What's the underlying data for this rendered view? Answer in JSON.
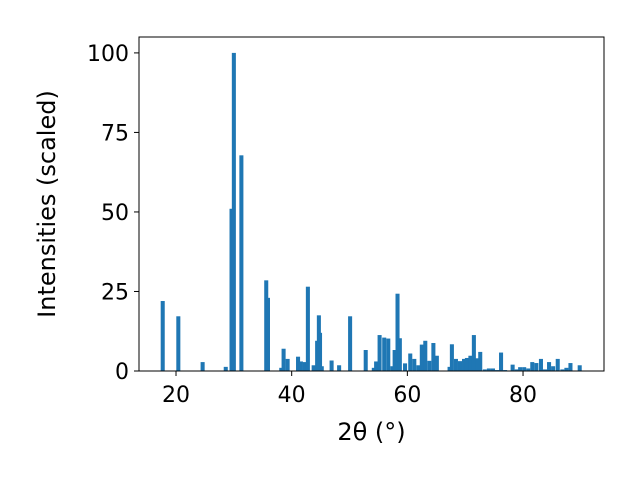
{
  "chart_data": {
    "type": "bar",
    "xlabel": "2θ (°)",
    "ylabel": "Intensities (scaled)",
    "title": "",
    "xlim": [
      13.6,
      94.0
    ],
    "ylim": [
      0,
      105
    ],
    "xticks": [
      20,
      40,
      60,
      80
    ],
    "yticks": [
      0,
      25,
      50,
      75,
      100
    ],
    "bar_width": 0.7,
    "grid": false,
    "legend": "none",
    "color": "#1f77b4",
    "x": [
      17.7,
      20.4,
      24.6,
      28.6,
      29.6,
      30.0,
      31.3,
      35.6,
      35.9,
      38.2,
      38.6,
      39.3,
      41.1,
      41.6,
      42.3,
      42.8,
      43.8,
      44.4,
      44.7,
      44.9,
      45.2,
      46.9,
      48.2,
      50.1,
      52.8,
      54.2,
      54.6,
      55.2,
      56.0,
      56.7,
      57.4,
      57.8,
      58.3,
      58.7,
      59.6,
      60.5,
      61.2,
      61.9,
      62.5,
      63.1,
      63.8,
      64.5,
      65.1,
      67.3,
      67.7,
      68.4,
      69.1,
      69.8,
      70.3,
      70.9,
      71.5,
      72.1,
      72.6,
      73.4,
      74.1,
      74.8,
      75.5,
      76.2,
      76.9,
      78.2,
      78.9,
      79.5,
      80.2,
      80.9,
      81.6,
      82.3,
      83.1,
      83.8,
      84.5,
      85.2,
      86.0,
      86.8,
      87.5,
      88.2,
      89.8
    ],
    "values": [
      22,
      17.2,
      2.8,
      1.3,
      51,
      100,
      67.8,
      28.5,
      23,
      1,
      7,
      3.8,
      4.5,
      3,
      2.8,
      26.5,
      1.8,
      9.5,
      17.5,
      12,
      1.5,
      3.3,
      1.8,
      17.2,
      6.6,
      1,
      3,
      11.3,
      10.5,
      10.2,
      1.5,
      6.6,
      24.3,
      10.3,
      2.4,
      5.5,
      3.8,
      1.8,
      8.3,
      9.5,
      3.2,
      8.8,
      4.8,
      1.3,
      8.4,
      3.8,
      3.1,
      3.8,
      4.1,
      4.8,
      11.3,
      4,
      6,
      0.5,
      0.8,
      0.8,
      0.3,
      5.8,
      0.3,
      2,
      0.5,
      1.2,
      1.2,
      0.8,
      2.8,
      2.5,
      3.8,
      0.5,
      2.8,
      1.5,
      3.8,
      0.5,
      1,
      2.5,
      1.8
    ]
  }
}
